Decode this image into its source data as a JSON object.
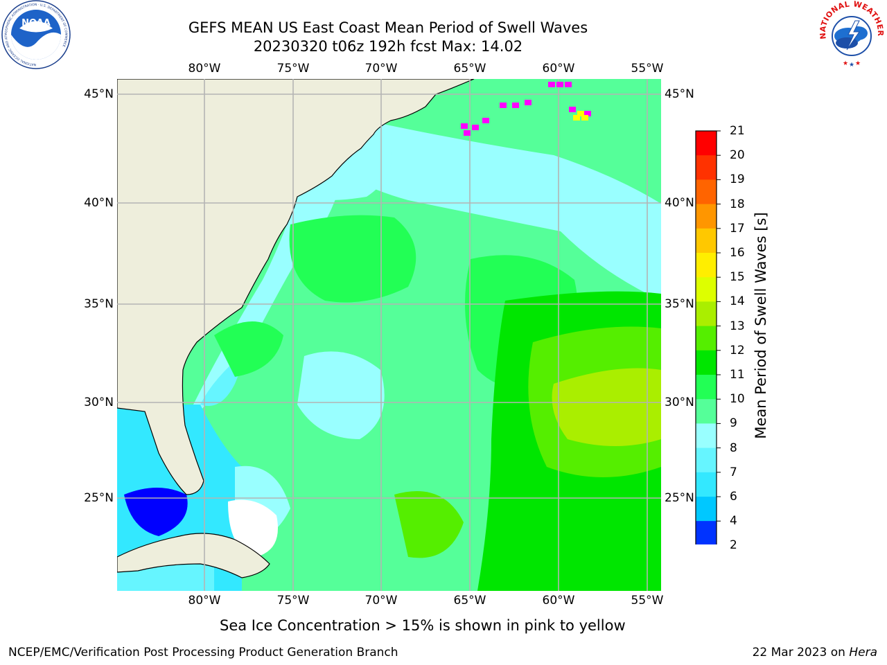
{
  "header": {
    "title_line1": "GEFS MEAN US East Coast Mean Period of Swell Waves",
    "title_line2": "20230320 t06z 192h fcst   Max: 14.02"
  },
  "axes": {
    "lon_labels": [
      "80°W",
      "75°W",
      "70°W",
      "65°W",
      "60°W",
      "55°W"
    ],
    "lat_labels": [
      "45°N",
      "40°N",
      "35°N",
      "30°N",
      "25°N"
    ]
  },
  "colorbar": {
    "title": "Mean Period of Swell Waves [s]",
    "ticks": [
      "2",
      "4",
      "6",
      "7",
      "8",
      "9",
      "10",
      "11",
      "12",
      "13",
      "14",
      "15",
      "16",
      "17",
      "18",
      "19",
      "20",
      "21"
    ],
    "colors": [
      "#0033ff",
      "#0077ff",
      "#00c8ff",
      "#33e8ff",
      "#66f5ff",
      "#99ffff",
      "#55ff99",
      "#22ff55",
      "#00e600",
      "#55ee00",
      "#aaee00",
      "#ddff00",
      "#ffee00",
      "#ffc800",
      "#ff9600",
      "#ff6400",
      "#ff3200",
      "#ff0000"
    ],
    "under_color": "#0000ff"
  },
  "map": {
    "land_color": "#eeeedc",
    "grid_color": "#b4b4b4",
    "ice_colors": [
      "#ff00ff",
      "#ffff00"
    ]
  },
  "footer": {
    "subtitle": "Sea Ice Concentration > 15% is shown in pink to yellow",
    "left": "NCEP/EMC/Verification Post Processing Product Generation Branch",
    "date": "22 Mar 2023 on ",
    "machine": "Hera"
  },
  "logos": {
    "noaa_text": "NOAA",
    "noaa_ring_text": "NATIONAL OCEANIC AND ATMOSPHERIC ADMINISTRATION · U.S. DEPARTMENT OF COMMERCE",
    "nws_ring_text": "NATIONAL WEATHER SERVICE"
  }
}
